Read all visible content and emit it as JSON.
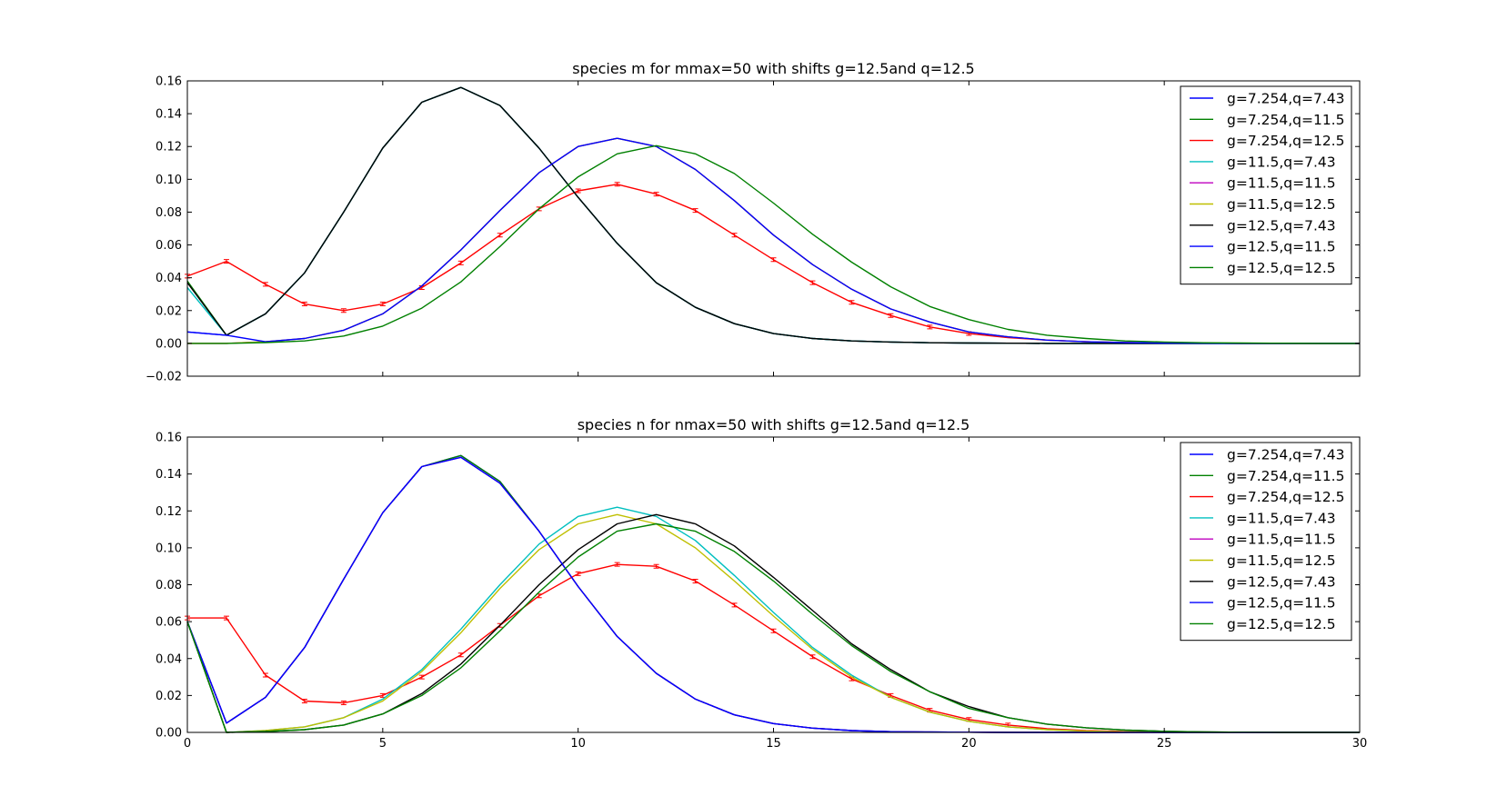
{
  "chart_data": [
    {
      "type": "line",
      "title": "species m for mmax=50 with shifts g=12.5and q=12.5",
      "xlabel": "",
      "ylabel": "",
      "xlim": [
        0,
        30
      ],
      "ylim": [
        -0.02,
        0.16
      ],
      "xticks": [
        0,
        5,
        10,
        15,
        20,
        25,
        30
      ],
      "xtick_labels": [
        "",
        "",
        "",
        "",
        "",
        "",
        ""
      ],
      "yticks": [
        -0.02,
        0.0,
        0.02,
        0.04,
        0.06,
        0.08,
        0.1,
        0.12,
        0.14,
        0.16
      ],
      "ytick_labels": [
        "−0.02",
        "0.00",
        "0.02",
        "0.04",
        "0.06",
        "0.08",
        "0.10",
        "0.12",
        "0.14",
        "0.16"
      ],
      "grid": false,
      "legend_position": "top-right",
      "x": [
        0,
        1,
        2,
        3,
        4,
        5,
        6,
        7,
        8,
        9,
        10,
        11,
        12,
        13,
        14,
        15,
        16,
        17,
        18,
        19,
        20,
        21,
        22,
        23,
        24,
        25,
        26,
        27,
        28,
        29,
        30
      ],
      "series": [
        {
          "name": "g=7.254,q=7.43",
          "color": "#0000ff",
          "values": [
            0.007,
            0.005,
            0.018,
            0.043,
            0.08,
            0.119,
            0.147,
            0.156,
            0.145,
            0.119,
            0.089,
            0.061,
            0.037,
            0.022,
            0.012,
            0.006,
            0.003,
            0.0015,
            0.0008,
            0.0004,
            0.0002,
            0.0001,
            0,
            0,
            0,
            0,
            0,
            0,
            0,
            0,
            0
          ]
        },
        {
          "name": "g=7.254,q=11.5",
          "color": "#008000",
          "values": [
            0.038,
            0.005,
            0.018,
            0.043,
            0.08,
            0.119,
            0.147,
            0.156,
            0.145,
            0.119,
            0.089,
            0.061,
            0.037,
            0.022,
            0.012,
            0.006,
            0.003,
            0.0015,
            0.0008,
            0.0004,
            0.0002,
            0.0001,
            0,
            0,
            0,
            0,
            0,
            0,
            0,
            0,
            0
          ]
        },
        {
          "name": "g=7.254,q=12.5",
          "color": "#ff0000",
          "errorbars": true,
          "values": [
            0.041,
            0.05,
            0.036,
            0.024,
            0.02,
            0.024,
            0.034,
            0.049,
            0.066,
            0.082,
            0.093,
            0.097,
            0.091,
            0.081,
            0.066,
            0.051,
            0.037,
            0.025,
            0.017,
            0.01,
            0.006,
            0.0035,
            0.002,
            0.001,
            0.0005,
            0.0002,
            0.0001,
            0,
            0,
            0,
            0
          ]
        },
        {
          "name": "g=11.5,q=7.43",
          "color": "#00bfbf",
          "values": [
            0.034,
            0.005,
            0.018,
            0.043,
            0.08,
            0.119,
            0.147,
            0.156,
            0.145,
            0.119,
            0.089,
            0.061,
            0.037,
            0.022,
            0.012,
            0.006,
            0.003,
            0.0015,
            0.0008,
            0.0004,
            0.0002,
            0.0001,
            0,
            0,
            0,
            0,
            0,
            0,
            0,
            0,
            0
          ]
        },
        {
          "name": "g=11.5,q=11.5",
          "color": "#bf00bf",
          "values": [
            0,
            0,
            0.001,
            0.003,
            0.008,
            0.018,
            0.035,
            0.057,
            0.081,
            0.104,
            0.12,
            0.125,
            0.12,
            0.106,
            0.087,
            0.066,
            0.048,
            0.033,
            0.021,
            0.013,
            0.007,
            0.004,
            0.002,
            0.001,
            0.0005,
            0.0002,
            0.0001,
            0,
            0,
            0,
            0
          ]
        },
        {
          "name": "g=11.5,q=12.5",
          "color": "#bfbf00",
          "values": [
            0,
            0,
            0.001,
            0.003,
            0.008,
            0.018,
            0.035,
            0.057,
            0.081,
            0.104,
            0.12,
            0.125,
            0.12,
            0.106,
            0.087,
            0.066,
            0.048,
            0.033,
            0.021,
            0.013,
            0.007,
            0.004,
            0.002,
            0.001,
            0.0005,
            0.0002,
            0.0001,
            0,
            0,
            0,
            0
          ]
        },
        {
          "name": "g=12.5,q=7.43",
          "color": "#000000",
          "values": [
            0.037,
            0.005,
            0.018,
            0.043,
            0.08,
            0.119,
            0.147,
            0.156,
            0.145,
            0.119,
            0.089,
            0.061,
            0.037,
            0.022,
            0.012,
            0.006,
            0.003,
            0.0015,
            0.0008,
            0.0004,
            0.0002,
            0.0001,
            0,
            0,
            0,
            0,
            0,
            0,
            0,
            0,
            0
          ]
        },
        {
          "name": "g=12.5,q=11.5",
          "color": "#0000ff",
          "values": [
            0.007,
            0.005,
            0.001,
            0.003,
            0.008,
            0.018,
            0.035,
            0.057,
            0.081,
            0.104,
            0.12,
            0.125,
            0.12,
            0.106,
            0.087,
            0.066,
            0.048,
            0.033,
            0.021,
            0.013,
            0.007,
            0.004,
            0.002,
            0.001,
            0.0005,
            0.0002,
            0.0001,
            0,
            0,
            0,
            0
          ]
        },
        {
          "name": "g=12.5,q=12.5",
          "color": "#008000",
          "values": [
            0,
            0,
            0.0005,
            0.0015,
            0.0045,
            0.0105,
            0.0215,
            0.0375,
            0.059,
            0.082,
            0.1015,
            0.1155,
            0.1205,
            0.1155,
            0.1035,
            0.0855,
            0.0665,
            0.0495,
            0.0345,
            0.0225,
            0.0145,
            0.0085,
            0.005,
            0.003,
            0.0015,
            0.0008,
            0.0004,
            0.0002,
            0.0001,
            0,
            0
          ]
        }
      ]
    },
    {
      "type": "line",
      "title": "species n for nmax=50 with shifts g=12.5and q=12.5",
      "xlabel": "",
      "ylabel": "",
      "xlim": [
        0,
        30
      ],
      "ylim": [
        0,
        0.16
      ],
      "xticks": [
        0,
        5,
        10,
        15,
        20,
        25,
        30
      ],
      "xtick_labels": [
        "0",
        "5",
        "10",
        "15",
        "20",
        "25",
        "30"
      ],
      "yticks": [
        0.0,
        0.02,
        0.04,
        0.06,
        0.08,
        0.1,
        0.12,
        0.14,
        0.16
      ],
      "ytick_labels": [
        "0.00",
        "0.02",
        "0.04",
        "0.06",
        "0.08",
        "0.10",
        "0.12",
        "0.14",
        "0.16"
      ],
      "grid": false,
      "legend_position": "top-right",
      "x": [
        0,
        1,
        2,
        3,
        4,
        5,
        6,
        7,
        8,
        9,
        10,
        11,
        12,
        13,
        14,
        15,
        16,
        17,
        18,
        19,
        20,
        21,
        22,
        23,
        24,
        25,
        26,
        27,
        28,
        29,
        30
      ],
      "series": [
        {
          "name": "g=7.254,q=7.43",
          "color": "#0000ff",
          "values": [
            0.06,
            0.005,
            0.019,
            0.046,
            0.083,
            0.119,
            0.144,
            0.15,
            0.136,
            0.109,
            0.079,
            0.052,
            0.032,
            0.018,
            0.0095,
            0.0048,
            0.0023,
            0.001,
            0.0004,
            0.0002,
            0.0001,
            0,
            0,
            0,
            0,
            0,
            0,
            0,
            0,
            0,
            0
          ]
        },
        {
          "name": "g=7.254,q=11.5",
          "color": "#008000",
          "values": [
            0.06,
            0.005,
            0.019,
            0.046,
            0.083,
            0.119,
            0.144,
            0.15,
            0.136,
            0.109,
            0.079,
            0.052,
            0.032,
            0.018,
            0.0095,
            0.0048,
            0.0023,
            0.001,
            0.0004,
            0.0002,
            0.0001,
            0,
            0,
            0,
            0,
            0,
            0,
            0,
            0,
            0,
            0
          ]
        },
        {
          "name": "g=7.254,q=12.5",
          "color": "#ff0000",
          "errorbars": true,
          "values": [
            0.062,
            0.062,
            0.031,
            0.017,
            0.016,
            0.02,
            0.03,
            0.042,
            0.058,
            0.074,
            0.086,
            0.091,
            0.09,
            0.082,
            0.069,
            0.055,
            0.041,
            0.029,
            0.02,
            0.012,
            0.007,
            0.004,
            0.002,
            0.001,
            0.0005,
            0.0002,
            0.0001,
            0,
            0,
            0,
            0
          ]
        },
        {
          "name": "g=11.5,q=7.43",
          "color": "#00bfbf",
          "values": [
            0.06,
            0,
            0.001,
            0.003,
            0.008,
            0.018,
            0.034,
            0.056,
            0.08,
            0.102,
            0.117,
            0.122,
            0.117,
            0.104,
            0.085,
            0.065,
            0.046,
            0.031,
            0.019,
            0.011,
            0.006,
            0.003,
            0.0015,
            0.0007,
            0.0003,
            0.0001,
            0,
            0,
            0,
            0,
            0
          ]
        },
        {
          "name": "g=11.5,q=11.5",
          "color": "#bf00bf",
          "values": [
            0.06,
            0.005,
            0.019,
            0.046,
            0.083,
            0.119,
            0.144,
            0.149,
            0.135,
            0.109,
            0.079,
            0.052,
            0.032,
            0.018,
            0.0095,
            0.0048,
            0.0023,
            0.001,
            0.0004,
            0.0002,
            0.0001,
            0,
            0,
            0,
            0,
            0,
            0,
            0,
            0,
            0,
            0
          ]
        },
        {
          "name": "g=11.5,q=12.5",
          "color": "#bfbf00",
          "values": [
            0.06,
            0,
            0.001,
            0.003,
            0.008,
            0.017,
            0.033,
            0.054,
            0.078,
            0.099,
            0.113,
            0.118,
            0.113,
            0.1,
            0.082,
            0.063,
            0.045,
            0.03,
            0.019,
            0.011,
            0.006,
            0.003,
            0.0015,
            0.0007,
            0.0003,
            0.0001,
            0,
            0,
            0,
            0,
            0
          ]
        },
        {
          "name": "g=12.5,q=7.43",
          "color": "#000000",
          "values": [
            0.06,
            0,
            0.0005,
            0.0015,
            0.004,
            0.01,
            0.021,
            0.037,
            0.058,
            0.08,
            0.099,
            0.113,
            0.118,
            0.113,
            0.101,
            0.084,
            0.066,
            0.048,
            0.034,
            0.022,
            0.014,
            0.008,
            0.0045,
            0.0025,
            0.0013,
            0.0006,
            0.0003,
            0.0001,
            0,
            0,
            0
          ]
        },
        {
          "name": "g=12.5,q=11.5",
          "color": "#0000ff",
          "values": [
            0.06,
            0.005,
            0.019,
            0.046,
            0.083,
            0.119,
            0.144,
            0.149,
            0.135,
            0.109,
            0.079,
            0.052,
            0.032,
            0.018,
            0.0095,
            0.0048,
            0.0023,
            0.001,
            0.0004,
            0.0002,
            0.0001,
            0,
            0,
            0,
            0,
            0,
            0,
            0,
            0,
            0,
            0
          ]
        },
        {
          "name": "g=12.5,q=12.5",
          "color": "#008000",
          "values": [
            0.06,
            0,
            0.0005,
            0.0015,
            0.004,
            0.01,
            0.02,
            0.035,
            0.055,
            0.076,
            0.095,
            0.109,
            0.113,
            0.109,
            0.098,
            0.082,
            0.064,
            0.047,
            0.033,
            0.022,
            0.013,
            0.008,
            0.0045,
            0.0025,
            0.0013,
            0.0006,
            0.0003,
            0.0001,
            0,
            0,
            0
          ]
        }
      ]
    }
  ]
}
